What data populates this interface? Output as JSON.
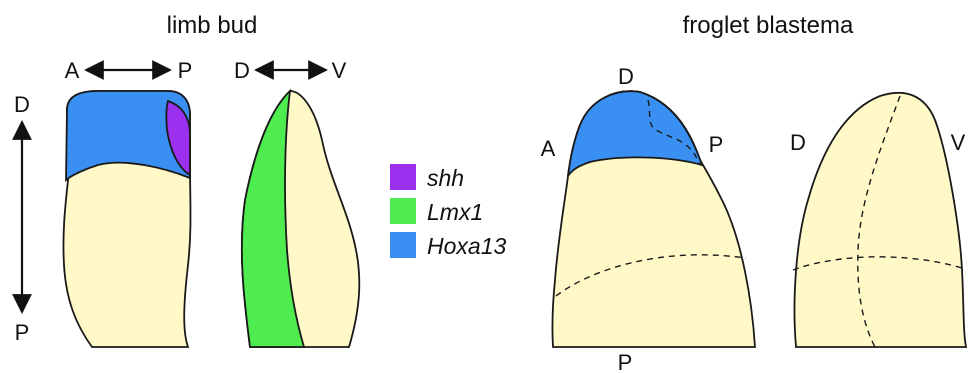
{
  "titles": {
    "limb_bud": "limb bud",
    "froglet_blastema": "froglet blastema"
  },
  "axis_labels": {
    "bud_front_left": "A",
    "bud_front_right": "P",
    "bud_side_left": "D",
    "bud_side_right": "V",
    "bud_vertical_top": "D",
    "bud_vertical_bottom": "P",
    "blastema_a": "A",
    "blastema_d_top": "D",
    "blastema_p_right": "P",
    "blastema_p_bottom": "P",
    "blastema2_d": "D",
    "blastema2_v": "V"
  },
  "legend": [
    {
      "label": "shh",
      "color": "#9b30ee"
    },
    {
      "label": "Lmx1",
      "color": "#4fec4f"
    },
    {
      "label": "Hoxa13",
      "color": "#3a8ff2"
    }
  ],
  "colors": {
    "tissue": "#fff9c8",
    "shh": "#9b30ee",
    "lmx1": "#4fec4f",
    "hoxa13": "#3a8ff2"
  }
}
